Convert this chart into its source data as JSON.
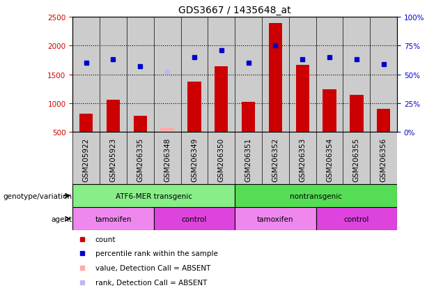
{
  "title": "GDS3667 / 1435648_at",
  "samples": [
    "GSM205922",
    "GSM205923",
    "GSM206335",
    "GSM206348",
    "GSM206349",
    "GSM206350",
    "GSM206351",
    "GSM206352",
    "GSM206353",
    "GSM206354",
    "GSM206355",
    "GSM206356"
  ],
  "counts": [
    820,
    1060,
    780,
    580,
    1370,
    1640,
    1030,
    2390,
    1670,
    1240,
    1150,
    900
  ],
  "percentile_ranks": [
    60,
    63,
    57,
    52,
    65,
    71,
    60,
    75,
    63,
    65,
    63,
    59
  ],
  "absent_indices": [
    3
  ],
  "ylim_left": [
    500,
    2500
  ],
  "ylim_right": [
    0,
    100
  ],
  "yticks_left": [
    500,
    1000,
    1500,
    2000,
    2500
  ],
  "yticks_right": [
    0,
    25,
    50,
    75,
    100
  ],
  "bar_color_normal": "#cc0000",
  "bar_color_absent": "#ffaaaa",
  "dot_color_normal": "#0000cc",
  "dot_color_absent": "#bbbbee",
  "bar_width": 0.5,
  "genotype_groups": [
    {
      "label": "ATF6-MER transgenic",
      "start": 0,
      "end": 6,
      "color": "#88ee88"
    },
    {
      "label": "nontransgenic",
      "start": 6,
      "end": 12,
      "color": "#55dd55"
    }
  ],
  "agent_groups": [
    {
      "label": "tamoxifen",
      "start": 0,
      "end": 3,
      "color": "#ee88ee"
    },
    {
      "label": "control",
      "start": 3,
      "end": 6,
      "color": "#dd44dd"
    },
    {
      "label": "tamoxifen",
      "start": 6,
      "end": 9,
      "color": "#ee88ee"
    },
    {
      "label": "control",
      "start": 9,
      "end": 12,
      "color": "#dd44dd"
    }
  ],
  "legend_items": [
    {
      "label": "count",
      "color": "#cc0000"
    },
    {
      "label": "percentile rank within the sample",
      "color": "#0000cc"
    },
    {
      "label": "value, Detection Call = ABSENT",
      "color": "#ffaaaa"
    },
    {
      "label": "rank, Detection Call = ABSENT",
      "color": "#bbbbee"
    }
  ],
  "left_tick_color": "#cc0000",
  "right_tick_color": "#0000cc",
  "sample_bg_color": "#cccccc",
  "fig_bg_color": "#ffffff",
  "grid_yticks": [
    1000,
    1500,
    2000
  ],
  "label_fontsize": 7.5,
  "tick_fontsize": 7.5
}
